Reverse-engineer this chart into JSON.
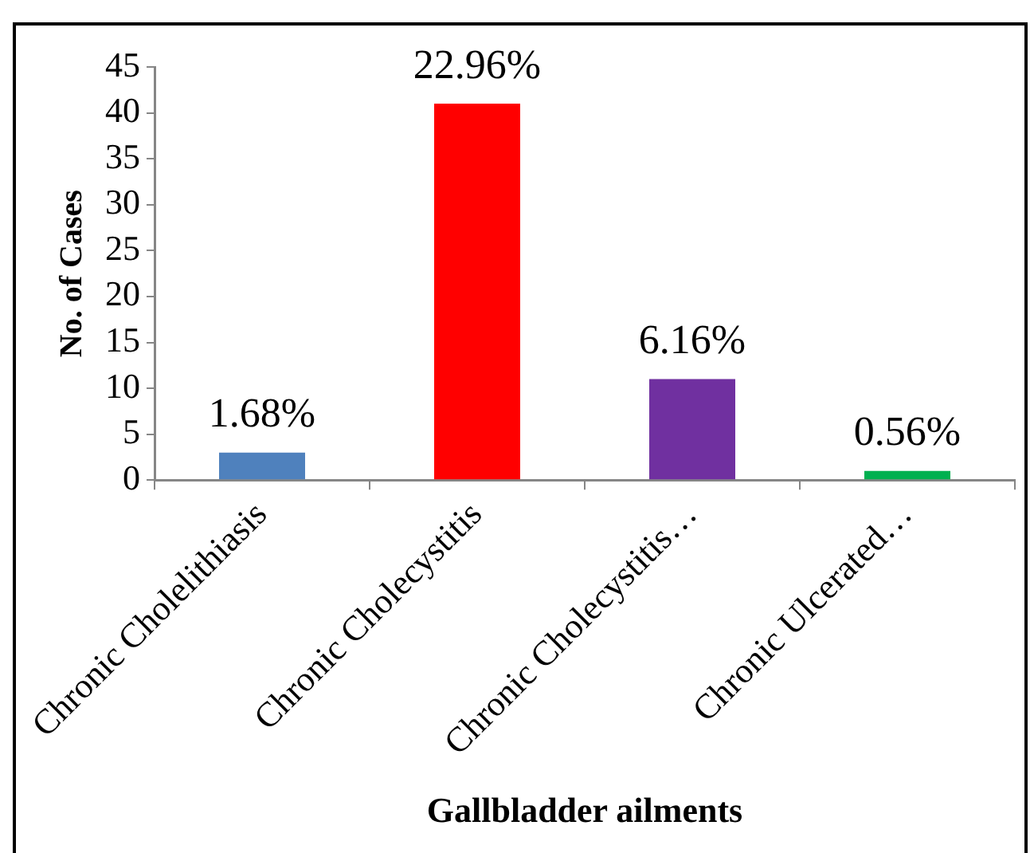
{
  "chart_data": {
    "type": "bar",
    "xlabel": "Gallbladder ailments",
    "ylabel": "No. of Cases",
    "categories": [
      "Chronic Cholelithiasis",
      "Chronic Cholecystitis",
      "Chronic Cholecystitis…",
      "Chronic Ulcerated…"
    ],
    "values": [
      3,
      41,
      11,
      1
    ],
    "colors": [
      "#4f81bd",
      "#ff0000",
      "#7030a0",
      "#00b050"
    ],
    "annotations": [
      {
        "text": "1.68%",
        "x": "Chronic Cholelithiasis",
        "y": 3
      },
      {
        "text": "22.96%",
        "x": "Chronic Cholecystitis",
        "y": 41
      },
      {
        "text": "6.16%",
        "x": "Chronic Cholecystitis…",
        "y": 11
      },
      {
        "text": "0.56%",
        "x": "Chronic Ulcerated…",
        "y": 1
      }
    ],
    "ylim": [
      0,
      45
    ],
    "yticks": [
      0,
      5,
      10,
      15,
      20,
      25,
      30,
      35,
      40,
      45
    ],
    "grid": false,
    "legend": false
  }
}
